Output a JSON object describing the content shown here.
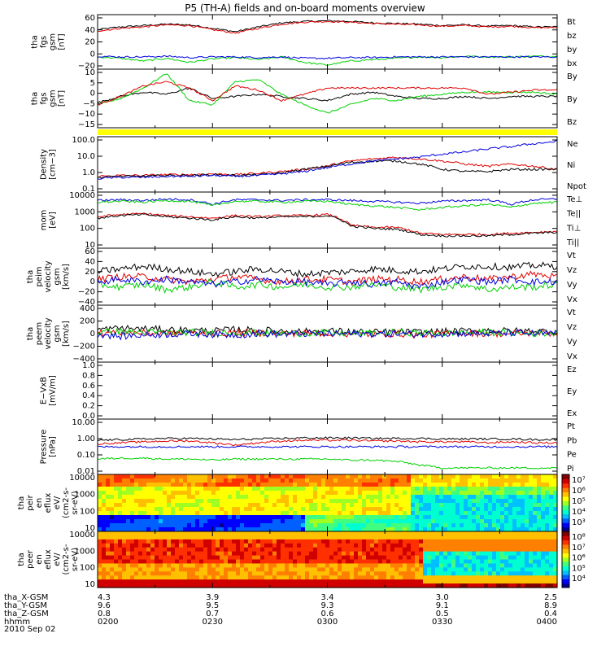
{
  "title": "P5 (TH-A) fields and on-board moments overview",
  "date": "2010 Sep 02",
  "colors": {
    "black": "#000000",
    "red": "#e00000",
    "green": "#00d000",
    "blue": "#0000e0",
    "yellow": "#ffff00"
  },
  "chart_data": [
    {
      "type": "line",
      "ylabel": [
        "tha",
        "fgs",
        "gsm",
        "[nT]"
      ],
      "yticks": [
        "60",
        "40",
        "20",
        "0",
        "−20"
      ],
      "ylim": [
        -20,
        60
      ],
      "series": [
        {
          "name": "Bt",
          "color": "black",
          "values": [
            38,
            42,
            44,
            46,
            45,
            40,
            35,
            42,
            48,
            50,
            51,
            50,
            48,
            47,
            46,
            44,
            45,
            43,
            44,
            42,
            42
          ]
        },
        {
          "name": "bz",
          "color": "red",
          "values": [
            36,
            40,
            42,
            45,
            44,
            38,
            33,
            40,
            46,
            49,
            50,
            49,
            47,
            46,
            45,
            43,
            44,
            42,
            43,
            41,
            41
          ]
        },
        {
          "name": "by",
          "color": "green",
          "values": [
            -2,
            -4,
            -8,
            -4,
            -10,
            -5,
            -3,
            -6,
            -2,
            -10,
            -14,
            -8,
            -6,
            -4,
            -2,
            -3,
            -1,
            -2,
            -2,
            -1,
            -1
          ]
        },
        {
          "name": "bx",
          "color": "blue",
          "values": [
            -1,
            -2,
            -2,
            -1,
            -3,
            -2,
            -2,
            -3,
            -2,
            -4,
            -4,
            -3,
            -3,
            -2,
            -2,
            -2,
            -2,
            -2,
            -2,
            -2,
            -2
          ]
        }
      ]
    },
    {
      "type": "line",
      "ylabel": [
        "tha",
        "fgs",
        "gsm",
        "[nT]"
      ],
      "yticks": [
        "10",
        "5",
        "0",
        "−5",
        "−10",
        "−15"
      ],
      "ylim": [
        -17,
        11
      ],
      "series": [
        {
          "name": "By",
          "color": "black",
          "values": [
            -5,
            -2,
            0,
            -1,
            2,
            -3,
            -2,
            -1,
            -2,
            -3,
            -4,
            -1,
            0,
            -2,
            -3,
            -3,
            -2,
            -3,
            -2,
            -2,
            -2
          ]
        },
        {
          "name": "By",
          "color": "green",
          "values": [
            -6,
            -3,
            2,
            9,
            -4,
            -6,
            5,
            6,
            -1,
            -6,
            -10,
            -6,
            -3,
            -4,
            -2,
            -1,
            0,
            0,
            0,
            0,
            -1
          ]
        },
        {
          "name": "Bz",
          "color": "red",
          "values": [
            -6,
            -2,
            3,
            5,
            2,
            -4,
            3,
            1,
            -4,
            -1,
            2,
            2,
            2,
            2,
            2,
            2,
            2,
            -1,
            0,
            1,
            1
          ]
        }
      ]
    },
    {
      "type": "line",
      "ylabel": [
        "Density",
        "[cm−3]"
      ],
      "yticks": [
        "100.0",
        "10.0",
        "1.0",
        "0.1"
      ],
      "log": true,
      "ylim": [
        0.1,
        150
      ],
      "series": [
        {
          "name": "Ne",
          "color": "red",
          "values": [
            0.8,
            0.9,
            0.9,
            1.0,
            1.0,
            1.1,
            1.0,
            1.2,
            1.5,
            2,
            3,
            6,
            8,
            10,
            8,
            6,
            4,
            3,
            4,
            3,
            2
          ]
        },
        {
          "name": "Ni",
          "color": "black",
          "values": [
            0.7,
            0.8,
            0.8,
            0.9,
            0.9,
            1.0,
            0.9,
            1.0,
            1.2,
            2,
            3,
            5,
            6,
            6,
            4,
            2,
            1.5,
            1.5,
            2,
            2,
            2
          ]
        },
        {
          "name": "Npot",
          "color": "blue",
          "values": [
            0.6,
            0.7,
            0.7,
            0.8,
            0.8,
            0.9,
            0.8,
            0.9,
            1.1,
            1.5,
            2.5,
            4,
            6,
            8,
            10,
            15,
            20,
            30,
            40,
            60,
            80
          ]
        }
      ]
    },
    {
      "type": "line",
      "ylabel": [
        "mom",
        "[eV]"
      ],
      "yticks": [
        "10000",
        "1000",
        "100",
        "10"
      ],
      "log": true,
      "ylim": [
        10,
        15000
      ],
      "series": [
        {
          "name": "Te⊥",
          "color": "red",
          "values": [
            600,
            800,
            900,
            700,
            600,
            500,
            700,
            600,
            700,
            700,
            800,
            200,
            150,
            150,
            70,
            60,
            60,
            60,
            70,
            80,
            90
          ]
        },
        {
          "name": "Te||",
          "color": "black",
          "values": [
            500,
            700,
            800,
            600,
            500,
            400,
            600,
            500,
            600,
            600,
            700,
            180,
            130,
            120,
            60,
            50,
            50,
            50,
            60,
            70,
            80
          ]
        },
        {
          "name": "Ti⊥",
          "color": "blue",
          "values": [
            5000,
            5500,
            5000,
            6000,
            5500,
            3000,
            5500,
            5500,
            5000,
            5500,
            5500,
            5000,
            4500,
            4000,
            3500,
            4500,
            5000,
            5500,
            3000,
            5500,
            6000
          ]
        },
        {
          "name": "Ti||",
          "color": "green",
          "values": [
            4000,
            4500,
            4000,
            5000,
            4500,
            2500,
            4500,
            4500,
            4000,
            4500,
            4500,
            3000,
            2500,
            2000,
            1500,
            2000,
            2500,
            3000,
            2000,
            3500,
            4000
          ]
        }
      ]
    },
    {
      "type": "line",
      "ylabel": [
        "tha",
        "peim",
        "velocity",
        "gsm",
        "[km/s]"
      ],
      "yticks": [
        "60",
        "40",
        "20",
        "0",
        "−20",
        "−40"
      ],
      "ylim": [
        -45,
        65
      ],
      "series": [
        {
          "name": "Vt",
          "color": "black",
          "values": [
            20,
            25,
            30,
            25,
            20,
            15,
            20,
            25,
            20,
            15,
            18,
            20,
            25,
            22,
            20,
            25,
            30,
            30,
            28,
            32,
            30
          ]
        },
        {
          "name": "Vz",
          "color": "red",
          "values": [
            5,
            10,
            10,
            5,
            0,
            5,
            10,
            5,
            0,
            5,
            5,
            0,
            5,
            5,
            0,
            5,
            10,
            5,
            10,
            15,
            10
          ]
        },
        {
          "name": "Vy",
          "color": "green",
          "values": [
            -5,
            -10,
            -5,
            -15,
            -10,
            0,
            -10,
            -5,
            -10,
            -5,
            -10,
            -10,
            -5,
            -10,
            -15,
            -10,
            -5,
            -15,
            -10,
            -10,
            -5
          ]
        },
        {
          "name": "Vx",
          "color": "blue",
          "values": [
            0,
            5,
            0,
            5,
            0,
            -5,
            0,
            5,
            0,
            0,
            -5,
            0,
            -5,
            0,
            -10,
            0,
            5,
            0,
            5,
            0,
            0
          ]
        }
      ]
    },
    {
      "type": "line",
      "ylabel": [
        "tha",
        "peem",
        "velocity",
        "gsm",
        "[km/s]"
      ],
      "yticks": [
        "400",
        "200",
        "0",
        "−200",
        "−400"
      ],
      "ylim": [
        -420,
        420
      ],
      "series": [
        {
          "name": "Vt",
          "color": "black",
          "values": [
            60,
            80,
            70,
            60,
            50,
            40,
            60,
            50,
            40,
            30,
            40,
            30,
            20,
            30,
            20,
            30,
            40,
            50,
            40,
            40,
            30
          ]
        },
        {
          "name": "Vz",
          "color": "red",
          "values": [
            10,
            20,
            10,
            0,
            10,
            0,
            10,
            10,
            0,
            10,
            0,
            0,
            -10,
            0,
            -20,
            0,
            10,
            0,
            0,
            10,
            0
          ]
        },
        {
          "name": "Vy",
          "color": "green",
          "values": [
            20,
            30,
            20,
            10,
            20,
            10,
            20,
            10,
            0,
            10,
            10,
            0,
            10,
            20,
            10,
            0,
            10,
            20,
            10,
            0,
            10
          ]
        },
        {
          "name": "Vx",
          "color": "blue",
          "values": [
            -10,
            -40,
            -20,
            -10,
            0,
            -10,
            -20,
            0,
            -10,
            0,
            -5,
            0,
            -5,
            0,
            -10,
            0,
            5,
            0,
            10,
            0,
            0
          ]
        }
      ]
    },
    {
      "type": "line",
      "ylabel": [
        "E−VxB",
        "[mV/m]"
      ],
      "yticks": [
        "1.0",
        "0.8",
        "0.6",
        "0.4",
        "0.2",
        "0.0"
      ],
      "ylim": [
        0,
        1
      ],
      "series": [
        {
          "name": "Ez",
          "color": "red",
          "values": []
        },
        {
          "name": "Ey",
          "color": "green",
          "values": []
        },
        {
          "name": "Ex",
          "color": "blue",
          "values": []
        }
      ]
    },
    {
      "type": "line",
      "ylabel": [
        "Pressure",
        "[nPa]"
      ],
      "yticks": [
        "10.00",
        "1.00",
        "0.10",
        "0.01"
      ],
      "log": true,
      "ylim": [
        0.008,
        20
      ],
      "series": [
        {
          "name": "Pt",
          "color": "black",
          "values": [
            1.0,
            1.1,
            1.2,
            1.3,
            1.3,
            1.2,
            1.1,
            1.2,
            1.3,
            1.4,
            1.4,
            1.4,
            1.3,
            1.3,
            1.3,
            1.2,
            1.2,
            1.2,
            1.2,
            1.1,
            1.1
          ]
        },
        {
          "name": "Pb",
          "color": "red",
          "values": [
            0.6,
            0.7,
            0.8,
            0.9,
            0.9,
            0.7,
            0.5,
            0.7,
            0.9,
            1.0,
            1.0,
            1.0,
            0.9,
            0.9,
            0.8,
            0.8,
            0.8,
            0.7,
            0.8,
            0.7,
            0.7
          ]
        },
        {
          "name": "Pe",
          "color": "green",
          "values": [
            0.07,
            0.08,
            0.08,
            0.07,
            0.07,
            0.06,
            0.07,
            0.07,
            0.07,
            0.07,
            0.07,
            0.06,
            0.06,
            0.05,
            0.03,
            0.02,
            0.02,
            0.02,
            0.02,
            0.02,
            0.02
          ]
        },
        {
          "name": "Pi",
          "color": "blue",
          "values": [
            0.4,
            0.4,
            0.4,
            0.4,
            0.4,
            0.4,
            0.4,
            0.4,
            0.4,
            0.4,
            0.4,
            0.4,
            0.4,
            0.4,
            0.4,
            0.4,
            0.4,
            0.4,
            0.4,
            0.4,
            0.4
          ]
        }
      ]
    },
    {
      "type": "heatmap",
      "ylabel": [
        "tha",
        "peir",
        "en",
        "eflux",
        "eV/",
        "(cm2-s-",
        "sr-eV)"
      ],
      "yticks": [
        "10000",
        "1000",
        "100",
        "10"
      ],
      "colorbar": [
        "10⁷",
        "10⁶",
        "10⁵",
        "10⁴",
        "10³"
      ]
    },
    {
      "type": "heatmap",
      "ylabel": [
        "tha",
        "peer",
        "en",
        "eflux",
        "eV/",
        "(cm2-s-",
        "sr-eV)"
      ],
      "yticks": [
        "10000",
        "1000",
        "100",
        "10"
      ],
      "colorbar": [
        "10⁸",
        "10⁷",
        "10⁶",
        "10⁵",
        "10⁴"
      ]
    }
  ],
  "xaxis": {
    "rows": [
      {
        "label": "tha_X-GSM",
        "values": [
          "4.3",
          "3.9",
          "3.4",
          "3.0",
          "2.5"
        ]
      },
      {
        "label": "tha_Y-GSM",
        "values": [
          "9.6",
          "9.5",
          "9.3",
          "9.1",
          "8.9"
        ]
      },
      {
        "label": "tha_Z-GSM",
        "values": [
          "0.8",
          "0.7",
          "0.6",
          "0.5",
          "0.4"
        ]
      },
      {
        "label": "hhmm",
        "values": [
          "0200",
          "0230",
          "0300",
          "0330",
          "0400"
        ]
      }
    ]
  }
}
